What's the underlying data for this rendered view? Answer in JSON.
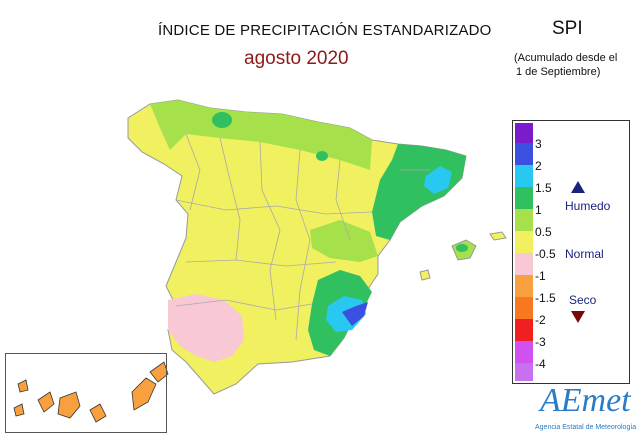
{
  "header": {
    "title": "ÍNDICE DE PRECIPITACIÓN ESTANDARIZADO",
    "subtitle": "agosto 2020",
    "index_name": "SPI",
    "accum_line1": "(Acumulado desde el",
    "accum_line2": "1 de Septiembre)"
  },
  "legend": {
    "ticks": [
      "3",
      "2",
      "1.5",
      "1",
      "0.5",
      "-0.5",
      "-1",
      "-1.5",
      "-2",
      "-3",
      "-4"
    ],
    "colors": [
      "#7a1ccc",
      "#3b4fe0",
      "#28c8f0",
      "#30c060",
      "#a6e04a",
      "#f0f060",
      "#f8c8d4",
      "#f8a040",
      "#f87820",
      "#f02020",
      "#d050f0",
      "#c870f0"
    ],
    "humedo": "Humedo",
    "normal": "Normal",
    "seco": "Seco",
    "humedo_color": "#1a237e",
    "seco_color": "#7a0a0a"
  },
  "logo": {
    "name": "AEmet",
    "tagline": "Agencia Estatal de Meteorología"
  }
}
